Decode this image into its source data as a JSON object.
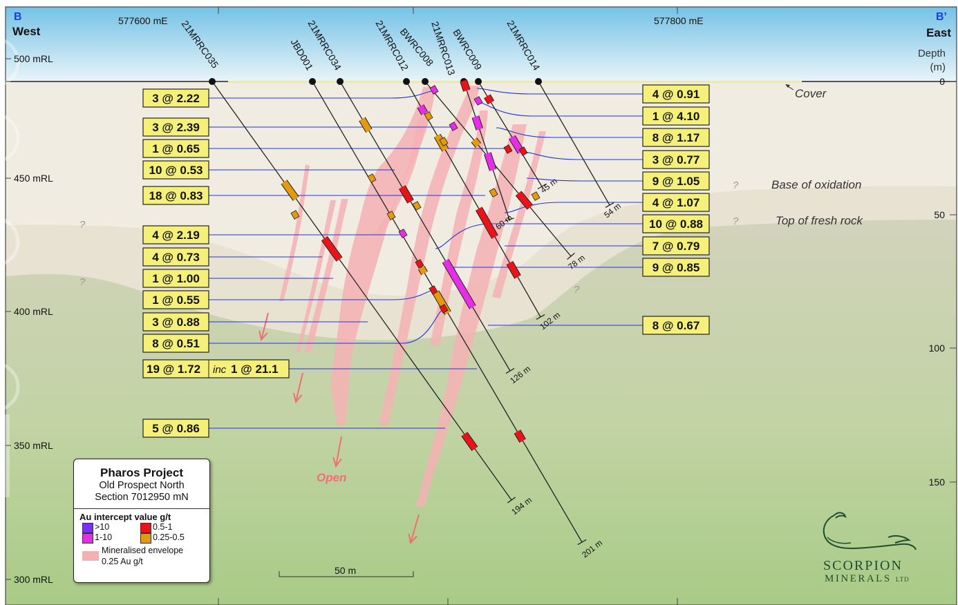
{
  "section": {
    "left_letter": "B",
    "right_letter": "B’",
    "left_dir": "West",
    "right_dir": "East",
    "easting_labels": [
      "577600 mE",
      "577800 mE"
    ],
    "rl_labels": [
      "500 mRL",
      "450 mRL",
      "400 mRL",
      "350 mRL",
      "300 mRL"
    ],
    "depth_title": "Depth",
    "depth_unit": "(m)",
    "depth_labels": [
      "0",
      "50",
      "100",
      "150"
    ],
    "cover": "Cover",
    "base_oxidation": "Base of oxidation",
    "top_fresh": "Top of fresh rock",
    "question": "?",
    "open_label": "Open",
    "scale_label": "50 m"
  },
  "holes": [
    {
      "name": "21MRRC035",
      "end": "194 m"
    },
    {
      "name": "JBD001",
      "end": "201 m"
    },
    {
      "name": "21MRRC034",
      "end": "126 m"
    },
    {
      "name": "21MRRC012",
      "end": "102 m"
    },
    {
      "name": "BWRC008",
      "end": "78 m"
    },
    {
      "name": "21MRRC013",
      "end": "60 m"
    },
    {
      "name": "BWRC009",
      "end": "45 m"
    },
    {
      "name": "21MRRC014",
      "end": "54 m"
    }
  ],
  "left_intercepts": [
    "3 @ 2.22",
    "3 @ 2.39",
    "1 @ 0.65",
    "10 @ 0.53",
    "18 @ 0.83",
    "4 @ 2.19",
    "4 @ 0.73",
    "1 @ 1.00",
    "1 @ 0.55",
    "3 @ 0.88",
    "8 @ 0.51",
    "5 @ 0.86"
  ],
  "big_intercept": {
    "main": "19 @ 1.72",
    "inc": "inc",
    "sub": "1 @ 21.1"
  },
  "right_intercepts": [
    "4 @ 0.91",
    "1 @ 4.10",
    "8 @ 1.17",
    "3 @ 0.77",
    "9 @ 1.05",
    "4 @ 1.07",
    "10 @ 0.88",
    "7 @ 0.79",
    "9 @ 0.85",
    "8 @ 0.67"
  ],
  "legend": {
    "title": "Pharos Project",
    "line1": "Old Prospect North",
    "line2": "Section 7012950 mN",
    "heading": "Au intercept value g/t",
    "items": [
      ">10",
      "0.5-1",
      "1-10",
      "0.25-0.5"
    ],
    "envelope1": "Mineralised envelope",
    "envelope2": "0.25 Au g/t"
  },
  "logo": {
    "name": "SCORPION",
    "sub": "MINERALS",
    "ltd": "LTD"
  },
  "colors": {
    "purple": "#7b2ff7",
    "magenta": "#e62ee6",
    "red": "#e8141a",
    "orange": "#e39a0c",
    "envelope": "#f4b1b4",
    "callout": "#f5f07a",
    "trace": "#2233dd",
    "sky": "#8fd0ec"
  }
}
